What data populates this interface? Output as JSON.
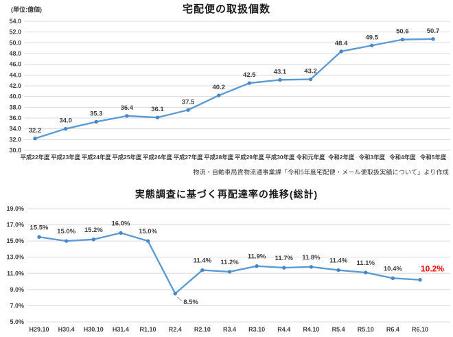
{
  "page": {
    "background": "#FFFFFF"
  },
  "chart_data": [
    {
      "type": "line",
      "title": "宅配便の取扱個数",
      "unit_label": "(単位:億個)",
      "categories": [
        "平成22年度",
        "平成23年度",
        "平成24年度",
        "平成25年度",
        "平成26年度",
        "平成27年度",
        "平成28年度",
        "平成29年度",
        "平成30年度",
        "令和元年度",
        "令和2年度",
        "令和3年度",
        "令和4年度",
        "令和5年度"
      ],
      "values": [
        32.2,
        34.0,
        35.3,
        36.4,
        36.1,
        37.5,
        40.2,
        42.5,
        43.1,
        43.2,
        48.4,
        49.5,
        50.6,
        50.7
      ],
      "ylim": [
        30.0,
        54.0
      ],
      "ytick_step": 2.0,
      "ytick_suffix": "",
      "value_decimals": 1,
      "value_suffix": "",
      "grid": true,
      "legend": "none",
      "line_color": "#5B9BD5",
      "marker_color": "#4A86C5",
      "grid_color": "#D9D9D9",
      "label_color": "#3F3F3F",
      "source_note": "物流・自動車局貨物流通事業課「令和5年度宅配便・メール便取扱実績について」より作成"
    },
    {
      "type": "line",
      "title": "実態調査に基づく再配達率の推移(総計)",
      "categories": [
        "H29.10",
        "H30.4",
        "H30.10",
        "H31.4",
        "R1.10",
        "R2.4",
        "R2.10",
        "R3.4",
        "R3.10",
        "R4.4",
        "R4.10",
        "R5.4",
        "R5.10",
        "R6.4",
        "R6.10"
      ],
      "values": [
        15.5,
        15.0,
        15.2,
        16.0,
        15.0,
        8.5,
        11.4,
        11.2,
        11.9,
        11.7,
        11.8,
        11.4,
        11.1,
        10.4,
        10.2
      ],
      "ylim": [
        5.0,
        19.0
      ],
      "ytick_step": 2.0,
      "ytick_suffix": "%",
      "value_decimals": 1,
      "value_suffix": "%",
      "grid": true,
      "legend": "none",
      "line_color": "#5B9BD5",
      "marker_color": "#4A86C5",
      "grid_color": "#D9D9D9",
      "label_color": "#3F3F3F",
      "highlight_last_color": "#FF0000",
      "below_label_indices": [
        5
      ]
    }
  ]
}
